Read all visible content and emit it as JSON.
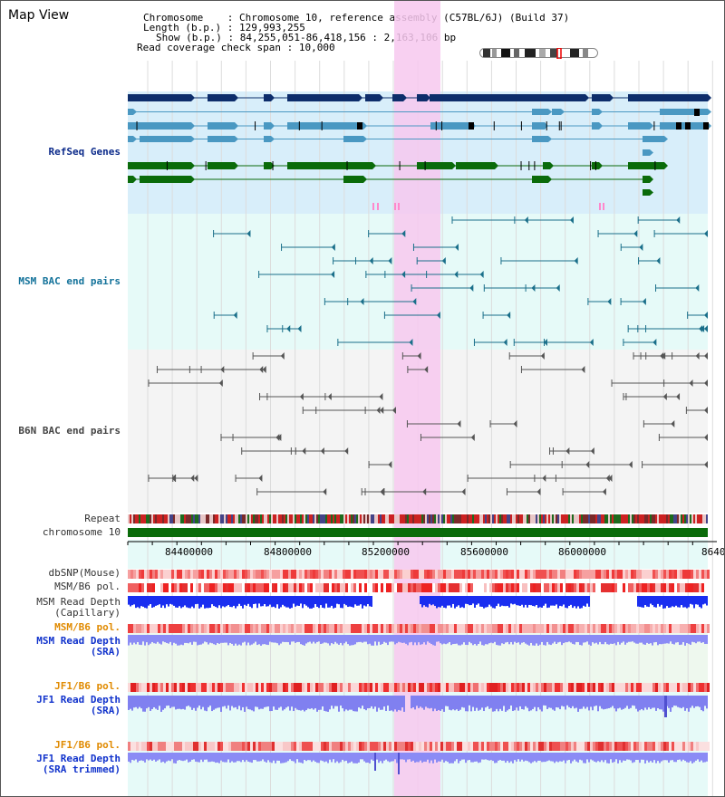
{
  "header": {
    "title": "Map View",
    "chromosome_label": "Chromosome",
    "chromosome_value": "Chromosome 10, reference assembly (C57BL/6J) (Build 37)",
    "length_label": "Length (b.p.)",
    "length_value": "129,993,255",
    "show_label": "Show (b.p.)",
    "show_value": "84,255,051-86,418,156 : 2,163,106 bp",
    "coverage_label": "Read coverage check span",
    "coverage_value": "10,000"
  },
  "tracks": {
    "refseq": "RefSeq Genes",
    "msm_bac": "MSM BAC end pairs",
    "b6n_bac": "B6N BAC end pairs",
    "repeat": "Repeat",
    "chromosome": "chromosome 10",
    "dbsnp": "dbSNP(Mouse)",
    "msm_b6_pol_1": "MSM/B6 pol.",
    "msm_read_depth_cap": "MSM Read Depth\n(Capillary)",
    "msm_b6_pol_2": "MSM/B6 pol.",
    "msm_read_depth_sra": "MSM Read Depth\n(SRA)",
    "jf1_b6_pol_1": "JF1/B6 pol.",
    "jf1_read_depth_sra": "JF1 Read Depth\n(SRA)",
    "jf1_b6_pol_2": "JF1/B6 pol.",
    "jf1_read_depth_trimmed": "JF1 Read Depth\n(SRA trimmed)"
  },
  "axis": {
    "ticks": [
      "84400000",
      "84800000",
      "85200000",
      "85600000",
      "86000000",
      "8640"
    ]
  },
  "colors": {
    "refseq_bg": "#d8eefa",
    "msm_bg": "#e6faf8",
    "b6n_bg": "#f4f4f4",
    "highlight": "#f7c8ee",
    "gene_navy": "#0d2d6b",
    "gene_teal": "#4a98c2",
    "gene_green": "#0a6b0a",
    "chromosome_bar": "#0a6b0a"
  }
}
